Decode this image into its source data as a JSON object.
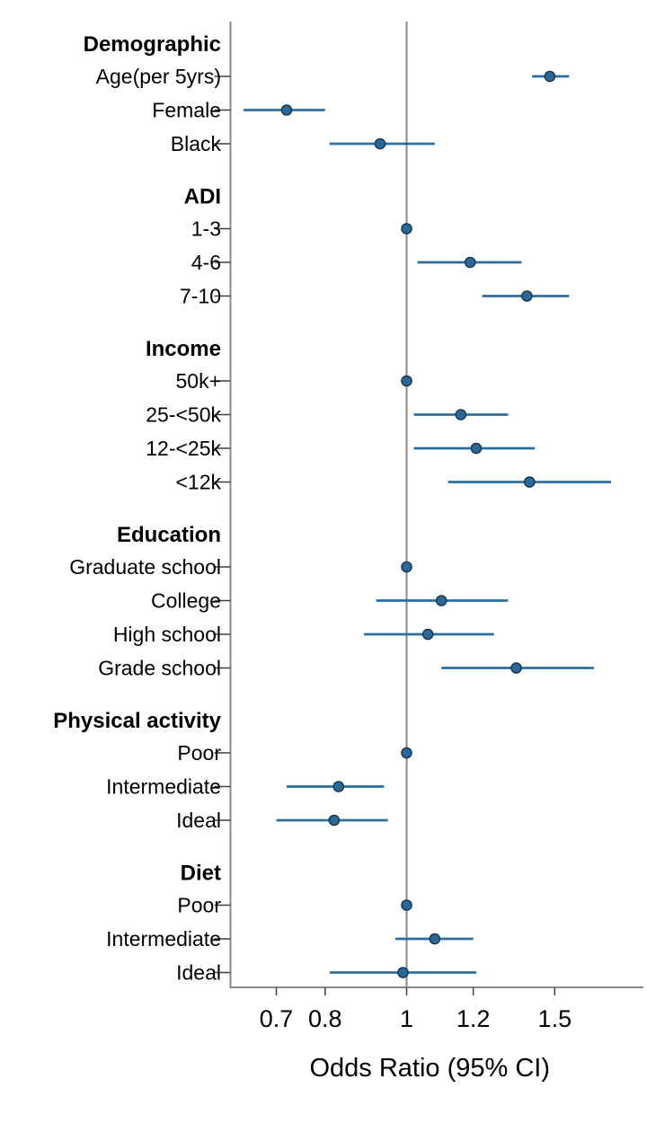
{
  "figure": {
    "title": "",
    "xlabel": "Odds Ratio (95% CI)"
  },
  "chart_data": {
    "type": "scatter",
    "subtype": "forest-plot",
    "title": "",
    "xlabel": "Odds Ratio (95% CI)",
    "ylabel": "",
    "x_scale": "log",
    "x_tick_labels": [
      "0.7",
      "0.8",
      "1",
      "1.2",
      "1.5"
    ],
    "x_tick_values": [
      0.7,
      0.8,
      1,
      1.2,
      1.5
    ],
    "x_range": [
      0.62,
      1.82
    ],
    "reference_line": 1,
    "grid": "off",
    "legend": "none",
    "colors": {
      "ci_line": "#2d6e9e",
      "point_fill": "#2a689a",
      "point_outline": "#16354e",
      "axis_line": "#8a8a8a",
      "reference_line": "#8a8a8a",
      "tick_mark": "#3f3f3f",
      "text": "#000000",
      "background": "#ffffff"
    },
    "groups": [
      {
        "label": "Demographic",
        "items": [
          {
            "label": "Age(per 5yrs)",
            "or": 1.48,
            "ci_low": 1.41,
            "ci_high": 1.56,
            "reference": false
          },
          {
            "label": "Female",
            "or": 0.72,
            "ci_low": 0.64,
            "ci_high": 0.8,
            "reference": false
          },
          {
            "label": "Black",
            "or": 0.93,
            "ci_low": 0.81,
            "ci_high": 1.08,
            "reference": false
          }
        ]
      },
      {
        "label": "ADI",
        "items": [
          {
            "label": "1-3",
            "or": 1.0,
            "ci_low": null,
            "ci_high": null,
            "reference": true
          },
          {
            "label": "4-6",
            "or": 1.19,
            "ci_low": 1.03,
            "ci_high": 1.37,
            "reference": false
          },
          {
            "label": "7-10",
            "or": 1.39,
            "ci_low": 1.23,
            "ci_high": 1.56,
            "reference": false
          }
        ]
      },
      {
        "label": "Income",
        "items": [
          {
            "label": "50k+",
            "or": 1.0,
            "ci_low": null,
            "ci_high": null,
            "reference": true
          },
          {
            "label": "25-<50k",
            "or": 1.16,
            "ci_low": 1.02,
            "ci_high": 1.32,
            "reference": false
          },
          {
            "label": "12-<25k",
            "or": 1.21,
            "ci_low": 1.02,
            "ci_high": 1.42,
            "reference": false
          },
          {
            "label": "<12k",
            "or": 1.4,
            "ci_low": 1.12,
            "ci_high": 1.75,
            "reference": false
          }
        ]
      },
      {
        "label": "Education",
        "items": [
          {
            "label": "Graduate school",
            "or": 1.0,
            "ci_low": null,
            "ci_high": null,
            "reference": true
          },
          {
            "label": "College",
            "or": 1.1,
            "ci_low": 0.92,
            "ci_high": 1.32,
            "reference": false
          },
          {
            "label": "High school",
            "or": 1.06,
            "ci_low": 0.89,
            "ci_high": 1.27,
            "reference": false
          },
          {
            "label": "Grade school",
            "or": 1.35,
            "ci_low": 1.1,
            "ci_high": 1.67,
            "reference": false
          }
        ]
      },
      {
        "label": "Physical activity",
        "items": [
          {
            "label": "Poor",
            "or": 1.0,
            "ci_low": null,
            "ci_high": null,
            "reference": true
          },
          {
            "label": "Intermediate",
            "or": 0.83,
            "ci_low": 0.72,
            "ci_high": 0.94,
            "reference": false
          },
          {
            "label": "Ideal",
            "or": 0.82,
            "ci_low": 0.7,
            "ci_high": 0.95,
            "reference": false
          }
        ]
      },
      {
        "label": "Diet",
        "items": [
          {
            "label": "Poor",
            "or": 1.0,
            "ci_low": null,
            "ci_high": null,
            "reference": true
          },
          {
            "label": "Intermediate",
            "or": 1.08,
            "ci_low": 0.97,
            "ci_high": 1.2,
            "reference": false
          },
          {
            "label": "Ideal",
            "or": 0.99,
            "ci_low": 0.81,
            "ci_high": 1.21,
            "reference": false
          }
        ]
      }
    ]
  }
}
